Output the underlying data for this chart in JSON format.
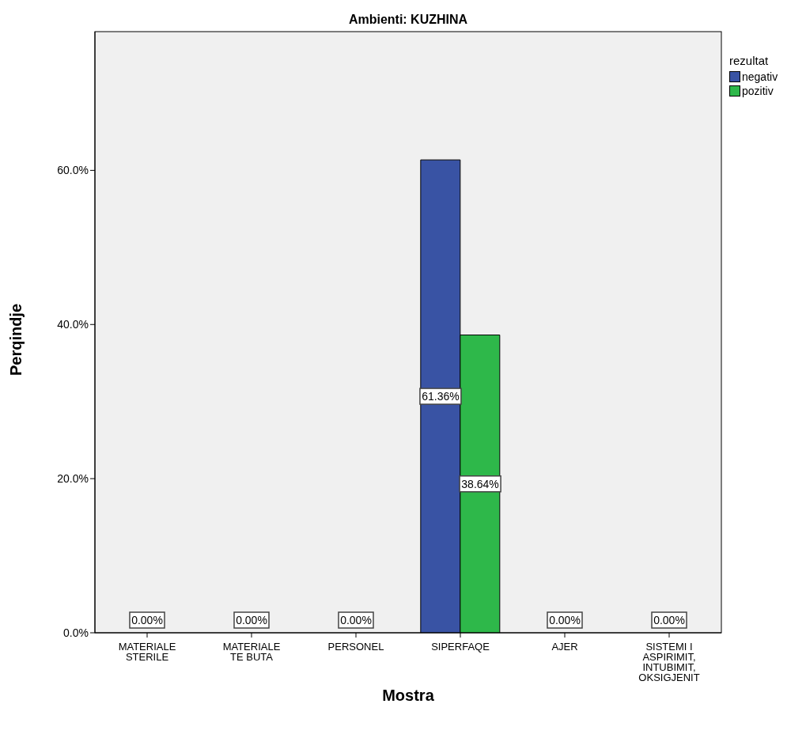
{
  "chart_data": {
    "type": "bar",
    "title": "Ambienti: KUZHINA",
    "xlabel": "Mostra",
    "ylabel": "Perqindje",
    "legend_title": "rezultat",
    "legend": "top right",
    "categories": [
      "MATERIALE STERILE",
      "MATERIALE TE BUTA",
      "PERSONEL",
      "SIPERFAQE",
      "AJER",
      "SISTEMI I ASPIRIMIT, INTUBIMIT, OKSIGJENIT"
    ],
    "series": [
      {
        "name": "negativ",
        "color": "#3953a4",
        "values": [
          0,
          0,
          0,
          61.36,
          0,
          0
        ],
        "value_labels": [
          "0.00%",
          "0.00%",
          "0.00%",
          "61.36%",
          "0.00%",
          "0.00%"
        ]
      },
      {
        "name": "pozitiv",
        "color": "#2eb84a",
        "values": [
          0,
          0,
          0,
          38.64,
          0,
          0
        ],
        "value_labels": [
          null,
          null,
          null,
          "38.64%",
          null,
          null
        ]
      }
    ],
    "ylim": [
      0,
      78
    ],
    "yticks": [
      {
        "value": 0,
        "label": "0.0%"
      },
      {
        "value": 20,
        "label": "20.0%"
      },
      {
        "value": 40,
        "label": "40.0%"
      },
      {
        "value": 60,
        "label": "60.0%"
      }
    ]
  }
}
